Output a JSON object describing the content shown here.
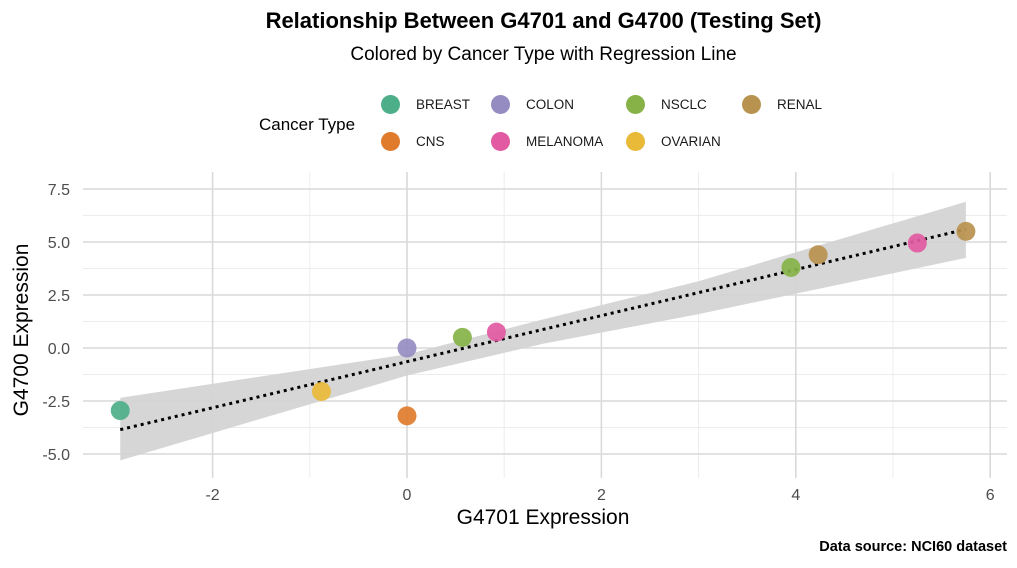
{
  "chart_data": {
    "type": "scatter",
    "title": "Relationship Between G4701 and G4700 (Testing Set)",
    "subtitle": "Colored by Cancer Type with Regression Line",
    "xlabel": "G4701 Expression",
    "ylabel": "G4700 Expression",
    "caption": "Data source: NCI60 dataset",
    "legend_title": "Cancer Type",
    "legend_position": "top",
    "grid": true,
    "xlim": [
      -3.2,
      6.1
    ],
    "ylim": [
      -5.6,
      7.7
    ],
    "x_ticks": [
      -2,
      0,
      2,
      4,
      6
    ],
    "y_ticks": [
      -5.0,
      -2.5,
      0.0,
      2.5,
      5.0,
      7.5
    ],
    "x_tick_labels": [
      "-2",
      "0",
      "2",
      "4",
      "6"
    ],
    "y_tick_labels": [
      "-5.0",
      "-2.5",
      "0.0",
      "2.5",
      "5.0",
      "7.5"
    ],
    "categories": [
      {
        "name": "BREAST",
        "color": "#4daf8a"
      },
      {
        "name": "CNS",
        "color": "#e07b2c"
      },
      {
        "name": "COLON",
        "color": "#958dc2"
      },
      {
        "name": "MELANOMA",
        "color": "#e15aa2"
      },
      {
        "name": "NSCLC",
        "color": "#86b248"
      },
      {
        "name": "OVARIAN",
        "color": "#e9ba38"
      },
      {
        "name": "RENAL",
        "color": "#b8924f"
      }
    ],
    "points": [
      {
        "x": -2.95,
        "y": -2.95,
        "category": "BREAST"
      },
      {
        "x": -0.88,
        "y": -2.05,
        "category": "OVARIAN"
      },
      {
        "x": 0.0,
        "y": -3.2,
        "category": "CNS"
      },
      {
        "x": 0.0,
        "y": 0.0,
        "category": "COLON"
      },
      {
        "x": 0.57,
        "y": 0.5,
        "category": "NSCLC"
      },
      {
        "x": 0.92,
        "y": 0.75,
        "category": "MELANOMA"
      },
      {
        "x": 3.95,
        "y": 3.8,
        "category": "NSCLC"
      },
      {
        "x": 4.23,
        "y": 4.4,
        "category": "RENAL"
      },
      {
        "x": 5.25,
        "y": 4.95,
        "category": "MELANOMA"
      },
      {
        "x": 5.75,
        "y": 5.5,
        "category": "RENAL"
      }
    ],
    "regression_line": {
      "x": [
        -2.95,
        5.75
      ],
      "y": [
        -3.85,
        5.6
      ],
      "style": "dotted",
      "color": "#000000"
    },
    "confidence_band": {
      "x": [
        -2.95,
        0.0,
        1.4,
        3.0,
        5.75
      ],
      "upper": [
        -2.35,
        -0.3,
        1.35,
        3.15,
        6.9
      ],
      "lower": [
        -5.3,
        -1.3,
        0.2,
        1.6,
        4.25
      ],
      "color": "#d4d4d4"
    }
  }
}
